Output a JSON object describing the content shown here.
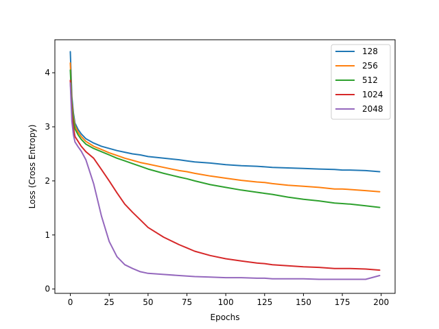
{
  "chart_data": {
    "type": "line",
    "title": "",
    "xlabel": "Epochs",
    "ylabel": "Loss (Cross Entropy)",
    "xlim": [
      -9.95,
      208.95
    ],
    "ylim": [
      -0.08,
      4.61
    ],
    "xticks": [
      0,
      25,
      50,
      75,
      100,
      125,
      150,
      175,
      200
    ],
    "yticks": [
      0,
      1,
      2,
      3,
      4
    ],
    "grid": false,
    "legend": "top-right",
    "x": [
      0,
      1,
      2,
      3,
      5,
      7,
      10,
      15,
      20,
      25,
      30,
      35,
      40,
      45,
      50,
      60,
      70,
      75,
      80,
      90,
      100,
      110,
      120,
      125,
      130,
      140,
      150,
      160,
      170,
      175,
      180,
      190,
      199
    ],
    "series": [
      {
        "name": "128",
        "color": "#1f77b4",
        "values": [
          4.39,
          3.55,
          3.25,
          3.07,
          2.95,
          2.87,
          2.78,
          2.7,
          2.64,
          2.6,
          2.56,
          2.53,
          2.5,
          2.48,
          2.45,
          2.42,
          2.39,
          2.37,
          2.35,
          2.33,
          2.3,
          2.28,
          2.27,
          2.26,
          2.25,
          2.24,
          2.23,
          2.22,
          2.21,
          2.2,
          2.2,
          2.19,
          2.17
        ]
      },
      {
        "name": "256",
        "color": "#ff7f0e",
        "values": [
          4.18,
          3.45,
          3.18,
          3.02,
          2.9,
          2.82,
          2.73,
          2.64,
          2.58,
          2.52,
          2.47,
          2.42,
          2.38,
          2.34,
          2.31,
          2.25,
          2.19,
          2.17,
          2.14,
          2.09,
          2.05,
          2.01,
          1.98,
          1.97,
          1.95,
          1.92,
          1.9,
          1.88,
          1.85,
          1.85,
          1.84,
          1.82,
          1.8
        ]
      },
      {
        "name": "512",
        "color": "#2ca02c",
        "values": [
          4.05,
          3.38,
          3.12,
          2.96,
          2.85,
          2.77,
          2.68,
          2.6,
          2.54,
          2.48,
          2.42,
          2.37,
          2.32,
          2.27,
          2.22,
          2.14,
          2.07,
          2.04,
          2.0,
          1.93,
          1.88,
          1.83,
          1.79,
          1.77,
          1.75,
          1.7,
          1.66,
          1.63,
          1.59,
          1.58,
          1.57,
          1.54,
          1.51
        ]
      },
      {
        "name": "1024",
        "color": "#d62728",
        "values": [
          3.86,
          3.25,
          2.98,
          2.82,
          2.73,
          2.64,
          2.54,
          2.42,
          2.21,
          2.0,
          1.78,
          1.57,
          1.42,
          1.28,
          1.14,
          0.96,
          0.82,
          0.76,
          0.7,
          0.62,
          0.56,
          0.52,
          0.48,
          0.47,
          0.45,
          0.43,
          0.41,
          0.4,
          0.38,
          0.38,
          0.38,
          0.37,
          0.35
        ]
      },
      {
        "name": "2048",
        "color": "#9467bd",
        "values": [
          3.81,
          3.1,
          2.85,
          2.72,
          2.63,
          2.55,
          2.39,
          1.95,
          1.35,
          0.88,
          0.6,
          0.45,
          0.38,
          0.32,
          0.29,
          0.27,
          0.25,
          0.24,
          0.23,
          0.22,
          0.21,
          0.21,
          0.2,
          0.2,
          0.19,
          0.19,
          0.19,
          0.18,
          0.18,
          0.18,
          0.18,
          0.18,
          0.25
        ]
      }
    ]
  }
}
